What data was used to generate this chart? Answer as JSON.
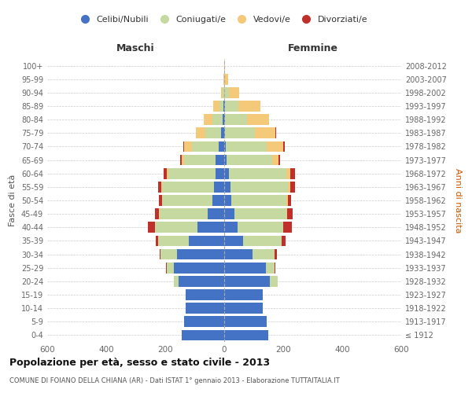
{
  "age_groups": [
    "100+",
    "95-99",
    "90-94",
    "85-89",
    "80-84",
    "75-79",
    "70-74",
    "65-69",
    "60-64",
    "55-59",
    "50-54",
    "45-49",
    "40-44",
    "35-39",
    "30-34",
    "25-29",
    "20-24",
    "15-19",
    "10-14",
    "5-9",
    "0-4"
  ],
  "birth_years": [
    "≤ 1912",
    "1913-1917",
    "1918-1922",
    "1923-1927",
    "1928-1932",
    "1933-1937",
    "1938-1942",
    "1943-1947",
    "1948-1952",
    "1953-1957",
    "1958-1962",
    "1963-1967",
    "1968-1972",
    "1973-1977",
    "1978-1982",
    "1983-1987",
    "1988-1992",
    "1993-1997",
    "1998-2002",
    "2003-2007",
    "2008-2012"
  ],
  "colors": {
    "celibe": "#4472c4",
    "coniugato": "#c5d9a0",
    "vedovo": "#f5c97a",
    "divorziato": "#c0302a"
  },
  "maschi": {
    "celibe": [
      0,
      0,
      1,
      2,
      5,
      10,
      20,
      30,
      30,
      35,
      40,
      55,
      90,
      120,
      160,
      170,
      155,
      130,
      130,
      135,
      145
    ],
    "coniugato": [
      0,
      1,
      5,
      15,
      35,
      55,
      90,
      105,
      160,
      175,
      170,
      165,
      145,
      105,
      55,
      25,
      15,
      0,
      0,
      0,
      0
    ],
    "vedovo": [
      0,
      1,
      5,
      20,
      30,
      30,
      25,
      10,
      5,
      3,
      2,
      1,
      0,
      0,
      0,
      0,
      0,
      0,
      0,
      0,
      0
    ],
    "divorziato": [
      0,
      0,
      0,
      0,
      0,
      0,
      3,
      5,
      10,
      10,
      10,
      15,
      25,
      8,
      5,
      2,
      2,
      0,
      0,
      0,
      0
    ]
  },
  "femmine": {
    "nubile": [
      0,
      0,
      1,
      2,
      2,
      3,
      5,
      8,
      15,
      20,
      25,
      35,
      45,
      65,
      95,
      140,
      155,
      130,
      130,
      145,
      150
    ],
    "coniugata": [
      1,
      3,
      15,
      45,
      75,
      100,
      140,
      155,
      195,
      195,
      185,
      175,
      155,
      130,
      75,
      30,
      25,
      0,
      0,
      0,
      0
    ],
    "vedova": [
      2,
      10,
      35,
      75,
      75,
      70,
      55,
      20,
      15,
      10,
      5,
      3,
      1,
      0,
      0,
      0,
      0,
      0,
      0,
      0,
      0
    ],
    "divorziata": [
      0,
      0,
      0,
      0,
      1,
      2,
      5,
      5,
      15,
      15,
      12,
      18,
      28,
      12,
      8,
      3,
      1,
      0,
      0,
      0,
      0
    ]
  },
  "title": "Popolazione per età, sesso e stato civile - 2013",
  "subtitle": "COMUNE DI FOIANO DELLA CHIANA (AR) - Dati ISTAT 1° gennaio 2013 - Elaborazione TUTTAITALIA.IT",
  "xlabel_left": "Maschi",
  "xlabel_right": "Femmine",
  "ylabel_left": "Fasce di età",
  "ylabel_right": "Anni di nascita",
  "xlim": 600,
  "legend_labels": [
    "Celibi/Nubili",
    "Coniugati/e",
    "Vedovi/e",
    "Divorziati/e"
  ]
}
